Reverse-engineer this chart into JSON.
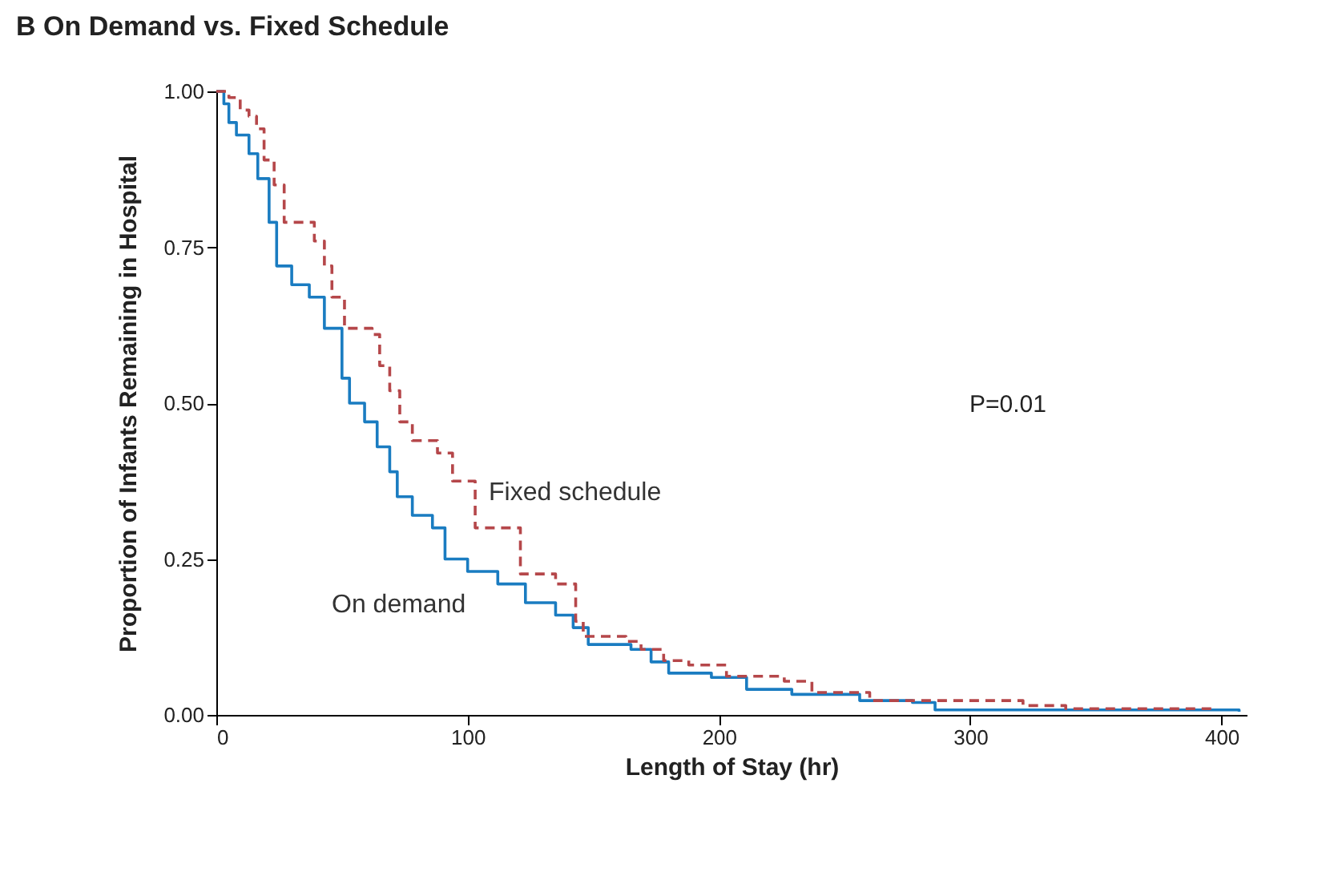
{
  "chart_data": {
    "type": "step",
    "title": "B  On Demand vs. Fixed Schedule",
    "xlabel": "Length of Stay (hr)",
    "ylabel": "Proportion of Infants Remaining in Hospital",
    "xlim": [
      0,
      410
    ],
    "ylim": [
      0,
      1
    ],
    "xticks": [
      0,
      100,
      200,
      300,
      400
    ],
    "yticks": [
      {
        "value": 0,
        "label": "0.00"
      },
      {
        "value": 0.25,
        "label": "0.25"
      },
      {
        "value": 0.5,
        "label": "0.50"
      },
      {
        "value": 0.75,
        "label": "0.75"
      },
      {
        "value": 1,
        "label": "1.00"
      }
    ],
    "grid": false,
    "annotations": [
      "P=0.01"
    ],
    "series": [
      {
        "name": "On demand",
        "color": "#1a7cc1",
        "line_style": "solid",
        "x": [
          0,
          3,
          5,
          8,
          13,
          16.5,
          21,
          24,
          30,
          37,
          43,
          50,
          53,
          59,
          64,
          69,
          72,
          78,
          86,
          91,
          100,
          112,
          123,
          135,
          142,
          148,
          165,
          173,
          180,
          197,
          211,
          229,
          256,
          277,
          286,
          407
        ],
        "values": [
          1,
          0.98,
          0.95,
          0.93,
          0.9,
          0.86,
          0.79,
          0.72,
          0.69,
          0.67,
          0.62,
          0.54,
          0.5,
          0.47,
          0.43,
          0.39,
          0.35,
          0.32,
          0.3,
          0.25,
          0.23,
          0.21,
          0.18,
          0.16,
          0.14,
          0.113,
          0.105,
          0.085,
          0.067,
          0.06,
          0.041,
          0.033,
          0.023,
          0.02,
          0.008,
          0.005
        ]
      },
      {
        "name": "Fixed schedule",
        "color": "#b5474a",
        "line_style": "dashed",
        "x": [
          0,
          5,
          9.5,
          13,
          16,
          19,
          23,
          27,
          39,
          43,
          46,
          51,
          62,
          65,
          69,
          73,
          78,
          88,
          94,
          103,
          121,
          135,
          143,
          146,
          163,
          169,
          178,
          188,
          203,
          226,
          237,
          260,
          321,
          338,
          396
        ],
        "values": [
          1,
          0.99,
          0.97,
          0.96,
          0.94,
          0.89,
          0.85,
          0.79,
          0.76,
          0.72,
          0.67,
          0.62,
          0.61,
          0.56,
          0.52,
          0.47,
          0.44,
          0.42,
          0.375,
          0.3,
          0.226,
          0.21,
          0.15,
          0.126,
          0.118,
          0.105,
          0.087,
          0.08,
          0.062,
          0.054,
          0.036,
          0.023,
          0.015,
          0.01,
          0.008
        ]
      }
    ]
  }
}
